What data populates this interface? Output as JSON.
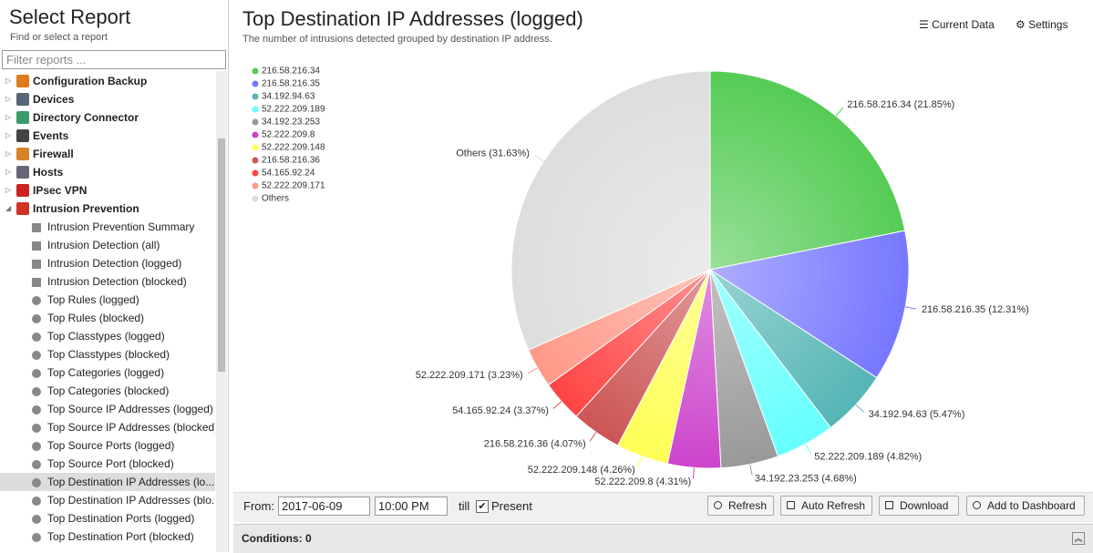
{
  "sidebar": {
    "title": "Select Report",
    "subtitle": "Find or select a report",
    "filter_placeholder": "Filter reports ...",
    "groups": [
      "Configuration Backup",
      "Devices",
      "Directory Connector",
      "Events",
      "Firewall",
      "Hosts",
      "IPsec VPN",
      "Intrusion Prevention"
    ],
    "reports": [
      "Intrusion Prevention Summary",
      "Intrusion Detection (all)",
      "Intrusion Detection (logged)",
      "Intrusion Detection (blocked)",
      "Top Rules (logged)",
      "Top Rules (blocked)",
      "Top Classtypes (logged)",
      "Top Classtypes (blocked)",
      "Top Categories (logged)",
      "Top Categories (blocked)",
      "Top Source IP Addresses (logged)",
      "Top Source IP Addresses (blocked)",
      "Top Source Ports (logged)",
      "Top Source Port (blocked)",
      "Top Destination IP Addresses (lo...",
      "Top Destination IP Addresses (blo...",
      "Top Destination Ports (logged)",
      "Top Destination Port (blocked)"
    ],
    "selected_report": 14
  },
  "header": {
    "title": "Top Destination IP Addresses (logged)",
    "subtitle": "The number of intrusions detected grouped by destination IP address.",
    "buttons": [
      "Current Data",
      "Settings"
    ]
  },
  "chart_data": {
    "type": "pie",
    "categories": [
      "216.58.216.34",
      "216.58.216.35",
      "34.192.94.63",
      "52.222.209.189",
      "34.192.23.253",
      "52.222.209.8",
      "52.222.209.148",
      "216.58.216.36",
      "54.165.92.24",
      "52.222.209.171",
      "Others"
    ],
    "values": [
      21.85,
      12.31,
      5.47,
      4.82,
      4.68,
      4.31,
      4.26,
      4.07,
      3.37,
      3.23,
      31.63
    ],
    "value_labels": [
      "(21.85%)",
      "(12.31%)",
      "(5.47%)",
      "(4.82%)",
      "(4.68%)",
      "(4.31%)",
      "(4.26%)",
      "(4.07%)",
      "(3.37%)",
      "(3.23%)",
      "(31.63%)"
    ],
    "colors": [
      "#55cc55",
      "#7777ff",
      "#55b5b5",
      "#66ffff",
      "#999999",
      "#cc44cc",
      "#ffff55",
      "#cc5555",
      "#ff4444",
      "#ff9988",
      "#dddddd"
    ],
    "legend": "top-left"
  },
  "toolbar": {
    "from_label": "From:",
    "date": "2017-06-09",
    "time": "10:00 PM",
    "till_label": "till",
    "present_label": "Present",
    "present_checked": true,
    "buttons": [
      "Refresh",
      "Auto Refresh",
      "Download",
      "Add to Dashboard"
    ]
  },
  "conditions": {
    "label": "Conditions: 0"
  }
}
